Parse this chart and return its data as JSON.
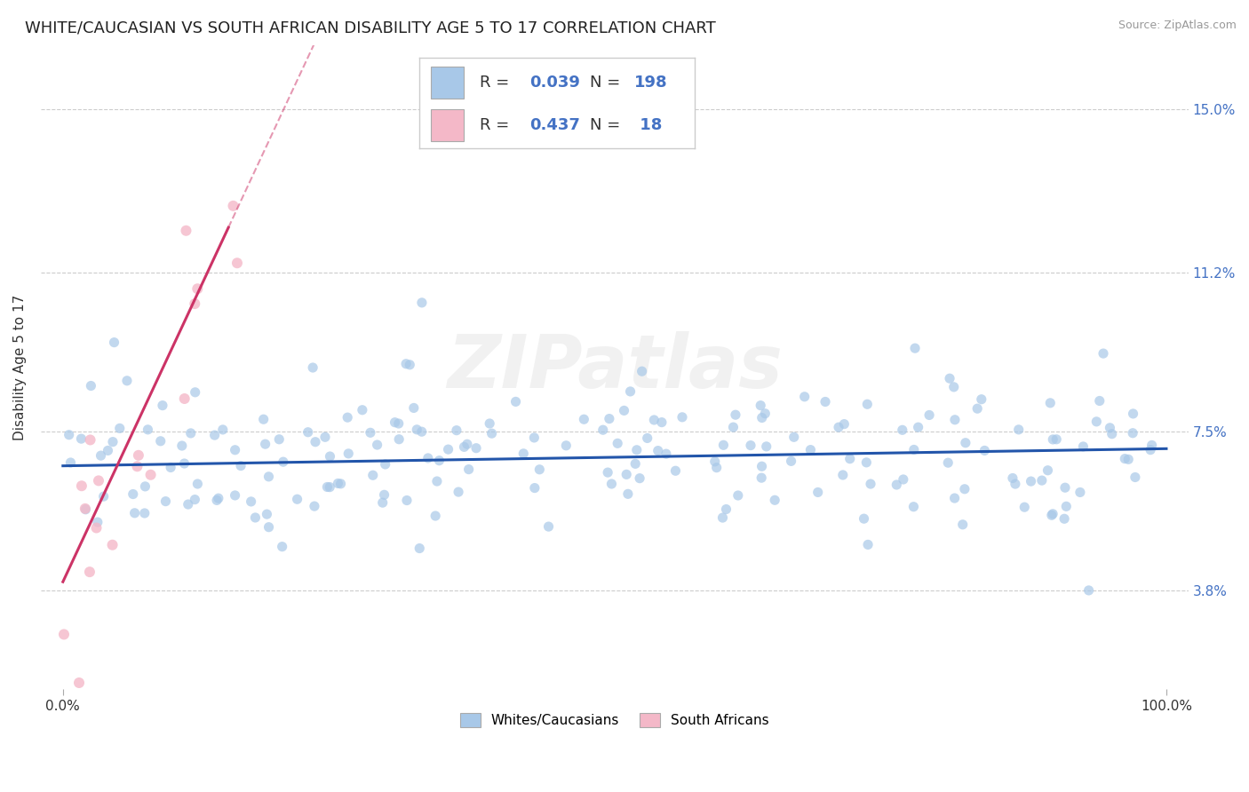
{
  "title": "WHITE/CAUCASIAN VS SOUTH AFRICAN DISABILITY AGE 5 TO 17 CORRELATION CHART",
  "source": "Source: ZipAtlas.com",
  "ylabel": "Disability Age 5 to 17",
  "watermark": "ZIPatlas",
  "xlim": [
    -2,
    102
  ],
  "ylim": [
    1.5,
    16.5
  ],
  "yticks": [
    3.8,
    7.5,
    11.2,
    15.0
  ],
  "blue_color": "#a8c8e8",
  "pink_color": "#f4b8c8",
  "trend_line_color_blue": "#2255aa",
  "trend_line_color_pink": "#cc3366",
  "R_blue": 0.039,
  "N_blue": 198,
  "R_pink": 0.437,
  "N_pink": 18,
  "legend_blue_label": "Whites/Caucasians",
  "legend_pink_label": "South Africans",
  "grid_color": "#cccccc",
  "background_color": "#ffffff",
  "title_fontsize": 13,
  "axis_label_fontsize": 11,
  "tick_fontsize": 11,
  "blue_scatter_seed": 42,
  "pink_scatter_seed": 99,
  "blue_alpha": 0.7,
  "pink_alpha": 0.8,
  "legend_text_color": "#333333",
  "legend_num_color": "#4472c4",
  "tick_color": "#4472c4"
}
